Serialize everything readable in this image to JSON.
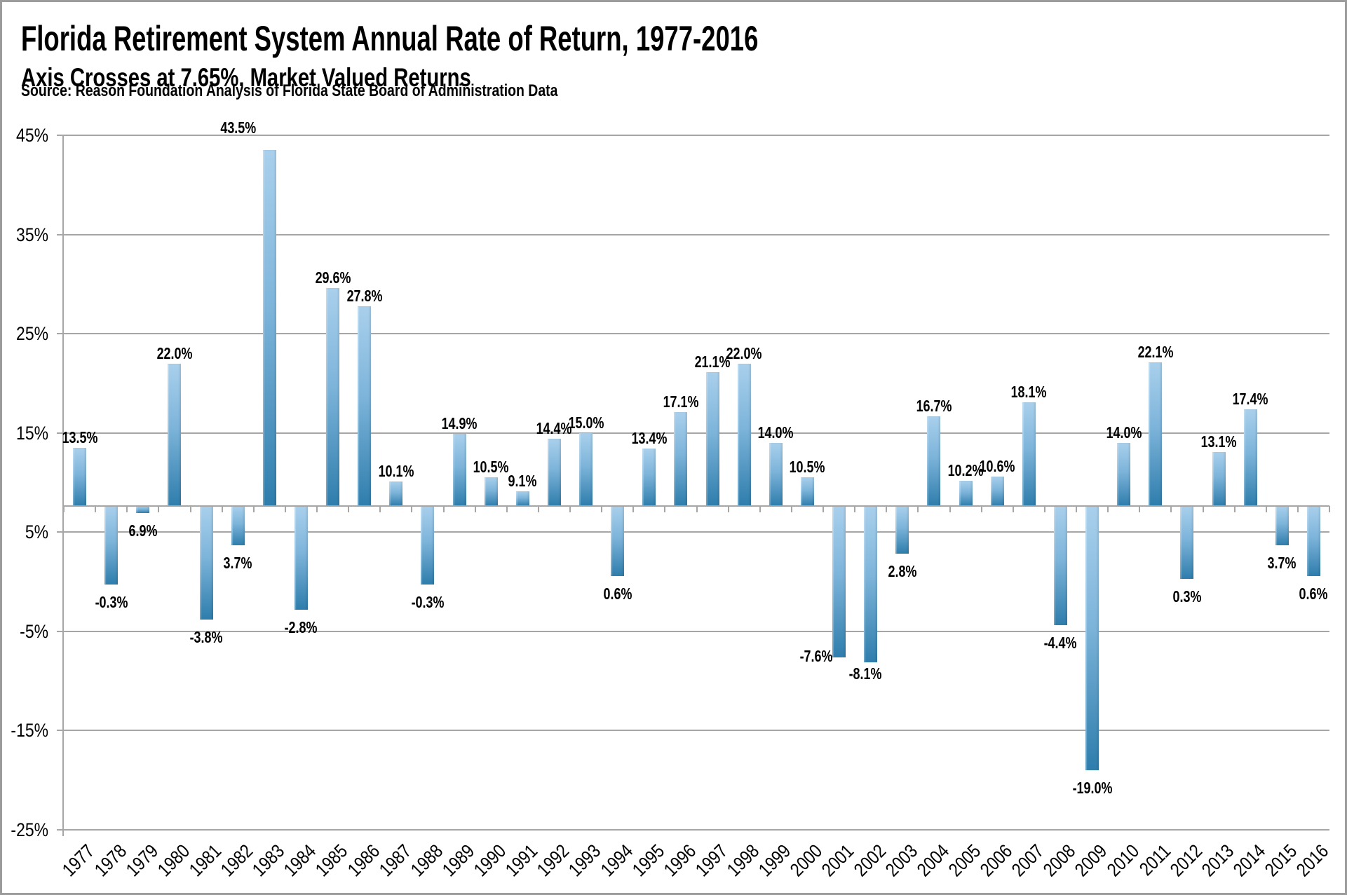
{
  "header": {
    "title": "Florida Retirement System Annual Rate of Return, 1977-2016",
    "subtitle": "Axis Crosses at 7.65%, Market Valued Returns",
    "source": "Source: Reason Foundation Analysis of Florida State Board of Administration Data"
  },
  "chart_data": {
    "type": "bar",
    "title": "Florida Retirement System Annual Rate of Return, 1977-2016",
    "subtitle": "Axis Crosses at 7.65%, Market Valued Returns",
    "categories": [
      1977,
      1978,
      1979,
      1980,
      1981,
      1982,
      1983,
      1984,
      1985,
      1986,
      1987,
      1988,
      1989,
      1990,
      1991,
      1992,
      1993,
      1994,
      1995,
      1996,
      1997,
      1998,
      1999,
      2000,
      2001,
      2002,
      2003,
      2004,
      2005,
      2006,
      2007,
      2008,
      2009,
      2010,
      2011,
      2012,
      2013,
      2014,
      2015,
      2016
    ],
    "values": [
      13.5,
      -0.3,
      6.9,
      22.0,
      -3.8,
      3.7,
      43.5,
      -2.8,
      29.6,
      27.8,
      10.1,
      -0.3,
      14.9,
      10.5,
      9.1,
      14.4,
      15.0,
      0.6,
      13.4,
      17.1,
      21.1,
      22.0,
      14.0,
      10.5,
      -7.6,
      -8.1,
      2.8,
      16.7,
      10.2,
      10.6,
      18.1,
      -4.4,
      -19.0,
      14.0,
      22.1,
      0.3,
      13.1,
      17.4,
      3.7,
      0.6
    ],
    "labels": [
      "13.5%",
      "-0.3%",
      "6.9%",
      "22.0%",
      "-3.8%",
      "3.7%",
      "43.5%",
      "-2.8%",
      "29.6%",
      "27.8%",
      "10.1%",
      "-0.3%",
      "14.9%",
      "10.5%",
      "9.1%",
      "14.4%",
      "15.0%",
      "0.6%",
      "13.4%",
      "17.1%",
      "21.1%",
      "22.0%",
      "14.0%",
      "10.5%",
      "-7.6%",
      "-8.1%",
      "2.8%",
      "16.7%",
      "10.2%",
      "10.6%",
      "18.1%",
      "-4.4%",
      "-19.0%",
      "14.0%",
      "22.1%",
      "0.3%",
      "13.1%",
      "17.4%",
      "3.7%",
      "0.6%"
    ],
    "xlabel": "",
    "ylabel": "",
    "ylim": [
      -25,
      45
    ],
    "baseline": 7.65,
    "grid": true,
    "legend": "none",
    "y_ticks": [
      {
        "value": 45,
        "label": "45%"
      },
      {
        "value": 35,
        "label": "35%"
      },
      {
        "value": 25,
        "label": "25%"
      },
      {
        "value": 15,
        "label": "15%"
      },
      {
        "value": 5,
        "label": "5%"
      },
      {
        "value": -5,
        "label": "-5%"
      },
      {
        "value": -15,
        "label": "-15%"
      },
      {
        "value": -25,
        "label": "-25%"
      }
    ],
    "colors": {
      "bar_gradient_top": "#a9d0ec",
      "bar_gradient_bottom": "#2e7dac",
      "gridline": "#a6a6a6",
      "text": "#000000"
    }
  }
}
